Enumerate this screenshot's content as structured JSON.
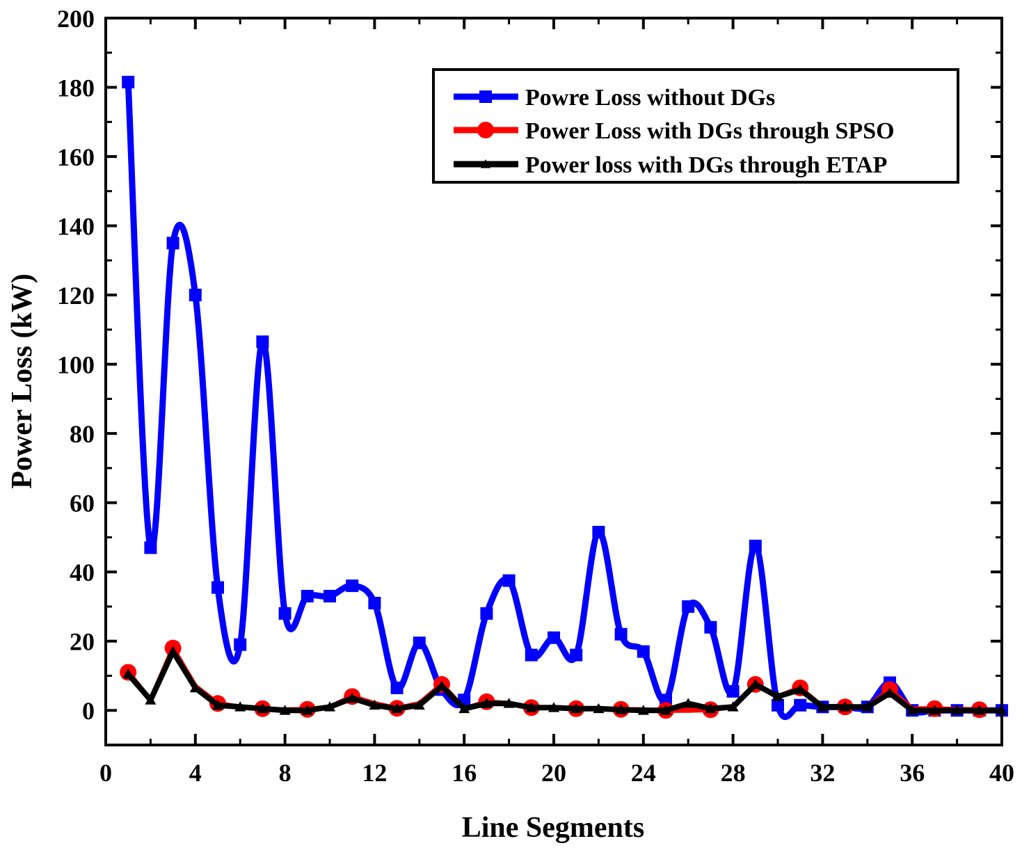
{
  "chart_data": {
    "type": "line",
    "title": "",
    "xlabel": "Line Segments",
    "ylabel": "Power Loss (kW)",
    "xlim": [
      0,
      40
    ],
    "ylim": [
      -10,
      200
    ],
    "x_ticks": [
      0,
      4,
      8,
      12,
      16,
      20,
      24,
      28,
      32,
      36,
      40
    ],
    "y_ticks": [
      0,
      20,
      40,
      60,
      80,
      100,
      120,
      140,
      160,
      180,
      200
    ],
    "legend_position": "top-right",
    "series": [
      {
        "name": "Powre Loss without DGs",
        "color": "#0000ff",
        "marker": "square",
        "x": [
          1,
          2,
          3,
          4,
          5,
          6,
          7,
          8,
          9,
          10,
          11,
          12,
          13,
          14,
          15,
          16,
          17,
          18,
          19,
          20,
          21,
          22,
          23,
          24,
          25,
          26,
          27,
          28,
          29,
          30,
          31,
          32,
          33,
          34,
          35,
          36,
          37,
          38,
          39,
          40
        ],
        "values": [
          181.5,
          47,
          135,
          120,
          35.5,
          19,
          106.5,
          28,
          33,
          33,
          36,
          31,
          6.5,
          19.5,
          6,
          3,
          28,
          37.5,
          16,
          21,
          16,
          51.5,
          22,
          17,
          3,
          30,
          24,
          5.5,
          47.5,
          1.5,
          1.5,
          1,
          1,
          1,
          8,
          0,
          0,
          0,
          0,
          0
        ]
      },
      {
        "name": "Power Loss with DGs through SPSO",
        "color": "#ff0000",
        "marker": "circle",
        "x": [
          1,
          2,
          3,
          4,
          5,
          6,
          7,
          8,
          9,
          10,
          11,
          12,
          13,
          14,
          15,
          16,
          17,
          18,
          19,
          20,
          21,
          22,
          23,
          24,
          25,
          26,
          27,
          28,
          29,
          30,
          31,
          32,
          33,
          34,
          35,
          36,
          37,
          38,
          39,
          40
        ],
        "values": [
          11,
          3,
          18,
          7,
          2,
          1,
          0.5,
          0.2,
          0.3,
          1,
          4,
          2,
          0.6,
          2,
          7.5,
          0.5,
          2.5,
          2,
          0.8,
          0.8,
          0.5,
          0.5,
          0.3,
          0.2,
          0,
          0,
          0.2,
          1,
          7.5,
          4,
          6.5,
          1,
          1,
          1,
          6,
          0.5,
          0.5,
          0.3,
          0.2,
          0
        ]
      },
      {
        "name": "Power loss with DGs through ETAP",
        "color": "#000000",
        "marker": "triangle",
        "x": [
          1,
          2,
          3,
          4,
          5,
          6,
          7,
          8,
          9,
          10,
          11,
          12,
          13,
          14,
          15,
          16,
          17,
          18,
          19,
          20,
          21,
          22,
          23,
          24,
          25,
          26,
          27,
          28,
          29,
          30,
          31,
          32,
          33,
          34,
          35,
          36,
          37,
          38,
          39,
          40
        ],
        "values": [
          10.5,
          3,
          17,
          6.5,
          1.5,
          1,
          0.5,
          0,
          0,
          1,
          3.5,
          1.5,
          0.5,
          1.5,
          7,
          0.5,
          2,
          2,
          0.8,
          0.8,
          0.5,
          0.5,
          0.2,
          0,
          0,
          2,
          0.5,
          1,
          7.5,
          4,
          6,
          1,
          1,
          1,
          5,
          0,
          0,
          0,
          0,
          0
        ]
      }
    ]
  }
}
